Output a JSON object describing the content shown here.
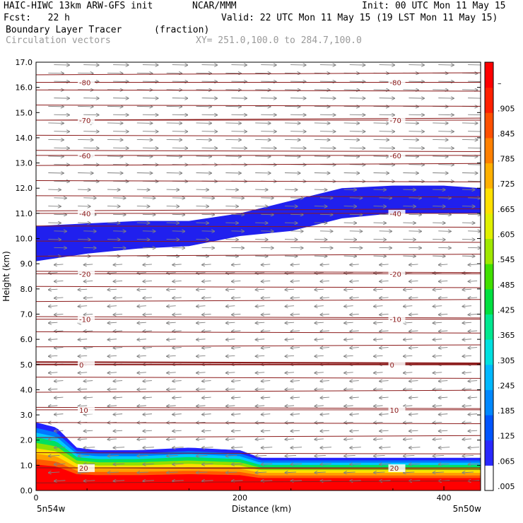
{
  "header": {
    "line1_left": "HAIC-HIWC 13km ARW-GFS init",
    "line1_mid": "NCAR/MMM",
    "line1_right": "Init: 00 UTC Mon 11 May 15",
    "line2_left": "Fcst:   22 h",
    "line2_right": "Valid: 22 UTC Mon 11 May 15 (19 LST Mon 11 May 15)",
    "field_name": "Boundary Layer Tracer",
    "field_units": "(fraction)",
    "vector_name": "Circulation vectors",
    "xy_range": "XY= 251.0,100.0 to 284.7,100.0"
  },
  "chart_data": {
    "type": "heatmap",
    "title": "Boundary Layer Tracer (fraction)",
    "xlabel": "Distance (km)",
    "ylabel": "Height (km)",
    "xlim": [
      0,
      436
    ],
    "ylim": [
      0,
      17
    ],
    "x_ticks": [
      0,
      200,
      400
    ],
    "x_tick_labels": [
      "0",
      "200",
      "400"
    ],
    "x_end_labels": {
      "left": "5n54w",
      "right": "5n50w"
    },
    "y_ticks": [
      0.0,
      1.0,
      2.0,
      3.0,
      4.0,
      5.0,
      6.0,
      7.0,
      8.0,
      9.0,
      10.0,
      11.0,
      12.0,
      13.0,
      14.0,
      15.0,
      16.0,
      17.0
    ],
    "y_tick_labels": [
      "0.0",
      "1.0",
      "2.0",
      "3.0",
      "4.0",
      "5.0",
      "6.0",
      "7.0",
      "8.0",
      "9.0",
      "10.0",
      "11.0",
      "12.0",
      "13.0",
      "14.0",
      "15.0",
      "16.0",
      "17.0"
    ],
    "colorbar": {
      "labels": [
        ".005",
        ".065",
        ".125",
        ".185",
        ".245",
        ".305",
        ".365",
        ".425",
        ".485",
        ".545",
        ".605",
        ".665",
        ".725",
        ".785",
        ".845",
        ".905",
        "–"
      ],
      "colors": [
        "#ffffff",
        "#2828ff",
        "#0055ff",
        "#0088ff",
        "#00b8ff",
        "#00e0e0",
        "#00e890",
        "#00e040",
        "#40e000",
        "#a0e800",
        "#e0f000",
        "#ffe000",
        "#ffb000",
        "#ff8000",
        "#ff5000",
        "#ff2000",
        "#ff0000"
      ]
    },
    "temperature_contours": [
      {
        "value": "-80",
        "height": 16.2
      },
      {
        "value": "-70",
        "height": 14.7
      },
      {
        "value": "-60",
        "height": 13.3
      },
      {
        "value": "-40",
        "height": 11.0
      },
      {
        "value": "-20",
        "height": 8.6
      },
      {
        "value": "-10",
        "height": 6.8
      },
      {
        "value": "0",
        "height": 5.0
      },
      {
        "value": "10",
        "height": 3.2
      },
      {
        "value": "20",
        "height": 0.9
      }
    ],
    "upper_tracer_layer": {
      "x": [
        0,
        50,
        100,
        150,
        200,
        250,
        300,
        350,
        400,
        436
      ],
      "bottom": [
        9.1,
        9.4,
        9.6,
        9.7,
        10.1,
        10.3,
        10.8,
        11.0,
        11.0,
        11.0
      ],
      "top": [
        10.5,
        10.6,
        10.7,
        10.7,
        11.0,
        11.5,
        12.0,
        12.1,
        12.1,
        12.0
      ]
    },
    "boundary_layer_top": {
      "x": [
        0,
        20,
        40,
        60,
        80,
        100,
        150,
        200,
        220,
        250,
        300,
        350,
        400,
        436
      ],
      "height": [
        2.7,
        2.5,
        1.7,
        1.6,
        1.6,
        1.6,
        1.7,
        1.6,
        1.3,
        1.3,
        1.3,
        1.3,
        1.3,
        1.3
      ]
    },
    "wind_regimes": [
      {
        "layer": [
          0.0,
          9.0
        ],
        "direction": "westward"
      },
      {
        "layer": [
          9.0,
          17.0
        ],
        "direction": "eastward"
      }
    ]
  }
}
